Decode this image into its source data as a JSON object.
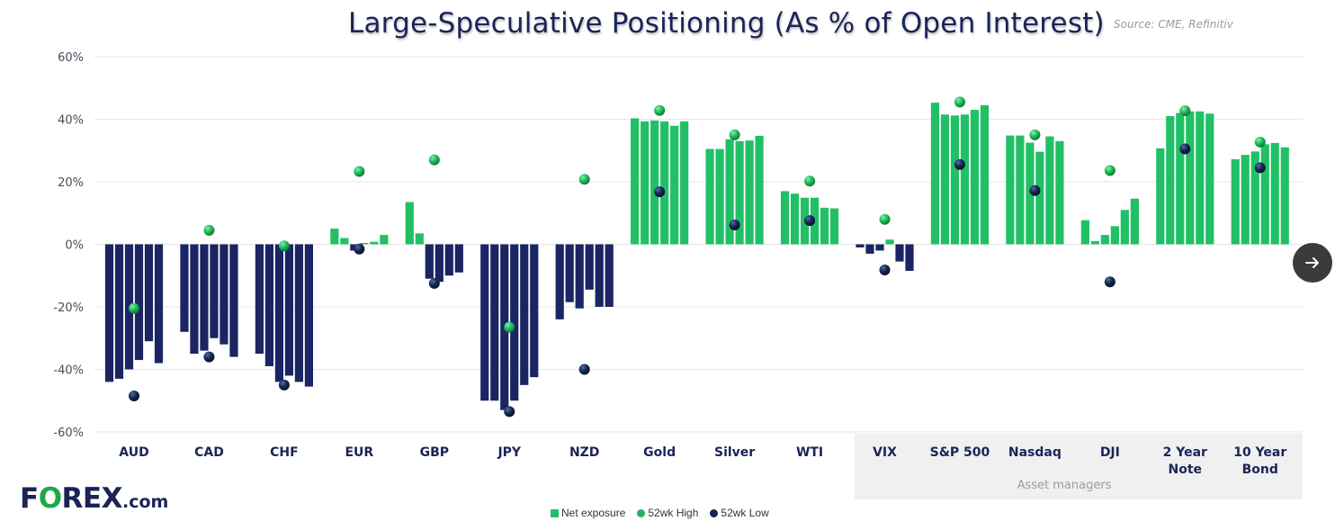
{
  "header": {
    "title": "Large-Speculative Positioning (As % of Open Interest)",
    "source": "Source: CME, Refinitiv"
  },
  "logo": {
    "text_pre": "F",
    "text_o": "O",
    "text_post": "REX",
    "text_com": ".com"
  },
  "legend": {
    "net_label": "Net exposure",
    "high_label": "52wk High",
    "low_label": "52wk Low"
  },
  "colors": {
    "positive": "#22c066",
    "negative": "#1b2563",
    "high_marker": "#1fb85a",
    "low_marker": "#15254f",
    "grid": "#e6e6e6",
    "asset_managers_bg": "#f0f0f0"
  },
  "next_button": {
    "icon": "arrow-right-icon"
  },
  "chart_data": {
    "type": "bar",
    "title": "Large-Speculative Positioning (As % of Open Interest)",
    "xlabel": "",
    "ylabel": "",
    "ylim": [
      -60,
      60
    ],
    "yticks": [
      60,
      40,
      20,
      0,
      -20,
      -40,
      -60
    ],
    "ytick_labels": [
      "60%",
      "40%",
      "20%",
      "0%",
      "-20%",
      "-40%",
      "-60%"
    ],
    "grid": true,
    "legend_position": "bottom-center",
    "group_annotation": {
      "label": "Asset managers",
      "categories": [
        "VIX",
        "S&P 500",
        "Nasdaq",
        "DJI",
        "2 Year Note",
        "10 Year Bond"
      ]
    },
    "categories": [
      {
        "label": [
          "AUD"
        ],
        "net": [
          -44,
          -43,
          -40,
          -37,
          -31,
          -38
        ],
        "high": -20.5,
        "low": -48.5
      },
      {
        "label": [
          "CAD"
        ],
        "net": [
          -28,
          -35,
          -34,
          -30,
          -32,
          -36
        ],
        "high": 4.5,
        "low": -36
      },
      {
        "label": [
          "CHF"
        ],
        "net": [
          -35,
          -39,
          -44,
          -42,
          -44,
          -45.5
        ],
        "high": -0.5,
        "low": -45
      },
      {
        "label": [
          "EUR"
        ],
        "net": [
          5,
          2,
          -2,
          0,
          0.8,
          3
        ],
        "high": 23.3,
        "low": -1.5
      },
      {
        "label": [
          "GBP"
        ],
        "net": [
          13.5,
          3.5,
          -11,
          -12,
          -10,
          -9
        ],
        "high": 27,
        "low": -12.5
      },
      {
        "label": [
          "JPY"
        ],
        "net": [
          -50,
          -50,
          -53,
          -50,
          -45,
          -42.5
        ],
        "high": -26.5,
        "low": -53.5
      },
      {
        "label": [
          "NZD"
        ],
        "net": [
          -24,
          -18.5,
          -20.5,
          -14.5,
          -20,
          -20
        ],
        "high": 20.8,
        "low": -40
      },
      {
        "label": [
          "Gold"
        ],
        "net": [
          40.3,
          39.3,
          39.6,
          39.3,
          37.9,
          39.3
        ],
        "high": 42.8,
        "low": 16.8
      },
      {
        "label": [
          "Silver"
        ],
        "net": [
          30.5,
          30.5,
          33.6,
          33,
          33.2,
          34.7
        ],
        "high": 35,
        "low": 6.2
      },
      {
        "label": [
          "WTI"
        ],
        "net": [
          17,
          16.2,
          14.9,
          14.9,
          11.7,
          11.5
        ],
        "high": 20.2,
        "low": 7.6
      },
      {
        "label": [
          "VIX"
        ],
        "net": [
          -1,
          -3,
          -2,
          1.5,
          -5.5,
          -8.5
        ],
        "high": 8,
        "low": -8.2
      },
      {
        "label": [
          "S&P 500"
        ],
        "net": [
          45.3,
          41.5,
          41.2,
          41.5,
          43,
          44.5
        ],
        "high": 45.5,
        "low": 25.5
      },
      {
        "label": [
          "Nasdaq"
        ],
        "net": [
          34.8,
          34.8,
          32.5,
          29.6,
          34.5,
          33
        ],
        "high": 35,
        "low": 17.2
      },
      {
        "label": [
          "DJI"
        ],
        "net": [
          7.7,
          1,
          3,
          5.8,
          11,
          14.6
        ],
        "high": 23.6,
        "low": -12
      },
      {
        "label": [
          "2 Year",
          "Note"
        ],
        "net": [
          30.7,
          41,
          42,
          42.5,
          42.5,
          41.8
        ],
        "high": 42.7,
        "low": 30.5
      },
      {
        "label": [
          "10 Year",
          "Bond"
        ],
        "net": [
          27.2,
          28.6,
          29.7,
          32,
          32.4,
          31
        ],
        "high": 32.7,
        "low": 24.5
      }
    ]
  }
}
